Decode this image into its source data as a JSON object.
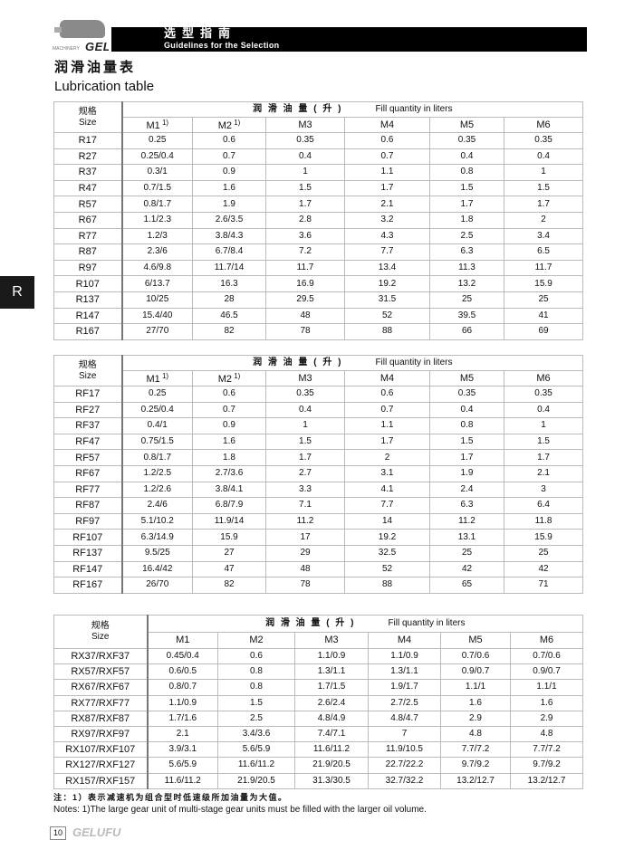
{
  "header": {
    "machinery": "MACHINERY",
    "brand": "GELUFU",
    "title_zh": "选型指南",
    "title_en": "Guidelines for the Selection"
  },
  "page": {
    "title_zh": "润滑油量表",
    "title_en": "Lubrication table",
    "side_tab": "R"
  },
  "tables": [
    {
      "size_zh": "规格",
      "size_en": "Size",
      "fill_zh": "润 滑 油 量 ( 升 )",
      "fill_en": "Fill quantity in liters",
      "columns": [
        "M1",
        "M2",
        "M3",
        "M4",
        "M5",
        "M6"
      ],
      "footnote_cols": [
        0,
        1
      ],
      "footnote_mark": "1)",
      "rows": [
        [
          "R17",
          "0.25",
          "0.6",
          "0.35",
          "0.6",
          "0.35",
          "0.35"
        ],
        [
          "R27",
          "0.25/0.4",
          "0.7",
          "0.4",
          "0.7",
          "0.4",
          "0.4"
        ],
        [
          "R37",
          "0.3/1",
          "0.9",
          "1",
          "1.1",
          "0.8",
          "1"
        ],
        [
          "R47",
          "0.7/1.5",
          "1.6",
          "1.5",
          "1.7",
          "1.5",
          "1.5"
        ],
        [
          "R57",
          "0.8/1.7",
          "1.9",
          "1.7",
          "2.1",
          "1.7",
          "1.7"
        ],
        [
          "R67",
          "1.1/2.3",
          "2.6/3.5",
          "2.8",
          "3.2",
          "1.8",
          "2"
        ],
        [
          "R77",
          "1.2/3",
          "3.8/4.3",
          "3.6",
          "4.3",
          "2.5",
          "3.4"
        ],
        [
          "R87",
          "2.3/6",
          "6.7/8.4",
          "7.2",
          "7.7",
          "6.3",
          "6.5"
        ],
        [
          "R97",
          "4.6/9.8",
          "11.7/14",
          "11.7",
          "13.4",
          "11.3",
          "11.7"
        ],
        [
          "R107",
          "6/13.7",
          "16.3",
          "16.9",
          "19.2",
          "13.2",
          "15.9"
        ],
        [
          "R137",
          "10/25",
          "28",
          "29.5",
          "31.5",
          "25",
          "25"
        ],
        [
          "R147",
          "15.4/40",
          "46.5",
          "48",
          "52",
          "39.5",
          "41"
        ],
        [
          "R167",
          "27/70",
          "82",
          "78",
          "88",
          "66",
          "69"
        ]
      ]
    },
    {
      "size_zh": "规格",
      "size_en": "Size",
      "fill_zh": "润 滑 油 量 ( 升 )",
      "fill_en": "Fill quantity in liters",
      "columns": [
        "M1",
        "M2",
        "M3",
        "M4",
        "M5",
        "M6"
      ],
      "footnote_cols": [
        0,
        1
      ],
      "footnote_mark": "1)",
      "rows": [
        [
          "RF17",
          "0.25",
          "0.6",
          "0.35",
          "0.6",
          "0.35",
          "0.35"
        ],
        [
          "RF27",
          "0.25/0.4",
          "0.7",
          "0.4",
          "0.7",
          "0.4",
          "0.4"
        ],
        [
          "RF37",
          "0.4/1",
          "0.9",
          "1",
          "1.1",
          "0.8",
          "1"
        ],
        [
          "RF47",
          "0.75/1.5",
          "1.6",
          "1.5",
          "1.7",
          "1.5",
          "1.5"
        ],
        [
          "RF57",
          "0.8/1.7",
          "1.8",
          "1.7",
          "2",
          "1.7",
          "1.7"
        ],
        [
          "RF67",
          "1.2/2.5",
          "2.7/3.6",
          "2.7",
          "3.1",
          "1.9",
          "2.1"
        ],
        [
          "RF77",
          "1.2/2.6",
          "3.8/4.1",
          "3.3",
          "4.1",
          "2.4",
          "3"
        ],
        [
          "RF87",
          "2.4/6",
          "6.8/7.9",
          "7.1",
          "7.7",
          "6.3",
          "6.4"
        ],
        [
          "RF97",
          "5.1/10.2",
          "11.9/14",
          "11.2",
          "14",
          "11.2",
          "11.8"
        ],
        [
          "RF107",
          "6.3/14.9",
          "15.9",
          "17",
          "19.2",
          "13.1",
          "15.9"
        ],
        [
          "RF137",
          "9.5/25",
          "27",
          "29",
          "32.5",
          "25",
          "25"
        ],
        [
          "RF147",
          "16.4/42",
          "47",
          "48",
          "52",
          "42",
          "42"
        ],
        [
          "RF167",
          "26/70",
          "82",
          "78",
          "88",
          "65",
          "71"
        ]
      ]
    },
    {
      "size_zh": "规格",
      "size_en": "Size",
      "fill_zh": "润 滑 油 量 ( 升 )",
      "fill_en": "Fill quantity in liters",
      "columns": [
        "M1",
        "M2",
        "M3",
        "M4",
        "M5",
        "M6"
      ],
      "footnote_cols": [],
      "footnote_mark": "",
      "rows": [
        [
          "RX37/RXF37",
          "0.45/0.4",
          "0.6",
          "1.1/0.9",
          "1.1/0.9",
          "0.7/0.6",
          "0.7/0.6"
        ],
        [
          "RX57/RXF57",
          "0.6/0.5",
          "0.8",
          "1.3/1.1",
          "1.3/1.1",
          "0.9/0.7",
          "0.9/0.7"
        ],
        [
          "RX67/RXF67",
          "0.8/0.7",
          "0.8",
          "1.7/1.5",
          "1.9/1.7",
          "1.1/1",
          "1.1/1"
        ],
        [
          "RX77/RXF77",
          "1.1/0.9",
          "1.5",
          "2.6/2.4",
          "2.7/2.5",
          "1.6",
          "1.6"
        ],
        [
          "RX87/RXF87",
          "1.7/1.6",
          "2.5",
          "4.8/4.9",
          "4.8/4.7",
          "2.9",
          "2.9"
        ],
        [
          "RX97/RXF97",
          "2.1",
          "3.4/3.6",
          "7.4/7.1",
          "7",
          "4.8",
          "4.8"
        ],
        [
          "RX107/RXF107",
          "3.9/3.1",
          "5.6/5.9",
          "11.6/11.2",
          "11.9/10.5",
          "7.7/7.2",
          "7.7/7.2"
        ],
        [
          "RX127/RXF127",
          "5.6/5.9",
          "11.6/11.2",
          "21.9/20.5",
          "22.7/22.2",
          "9.7/9.2",
          "9.7/9.2"
        ],
        [
          "RX157/RXF157",
          "11.6/11.2",
          "21.9/20.5",
          "31.3/30.5",
          "32.7/32.2",
          "13.2/12.7",
          "13.2/12.7"
        ]
      ]
    }
  ],
  "notes": {
    "zh": "注：1）表示减速机为组合型时低速级所加油量为大值。",
    "en": "Notes: 1)The large gear unit of multi-stage gear units must be filled with the larger oil volume."
  },
  "footer": {
    "page_number": "10",
    "brand": "GELUFU"
  }
}
